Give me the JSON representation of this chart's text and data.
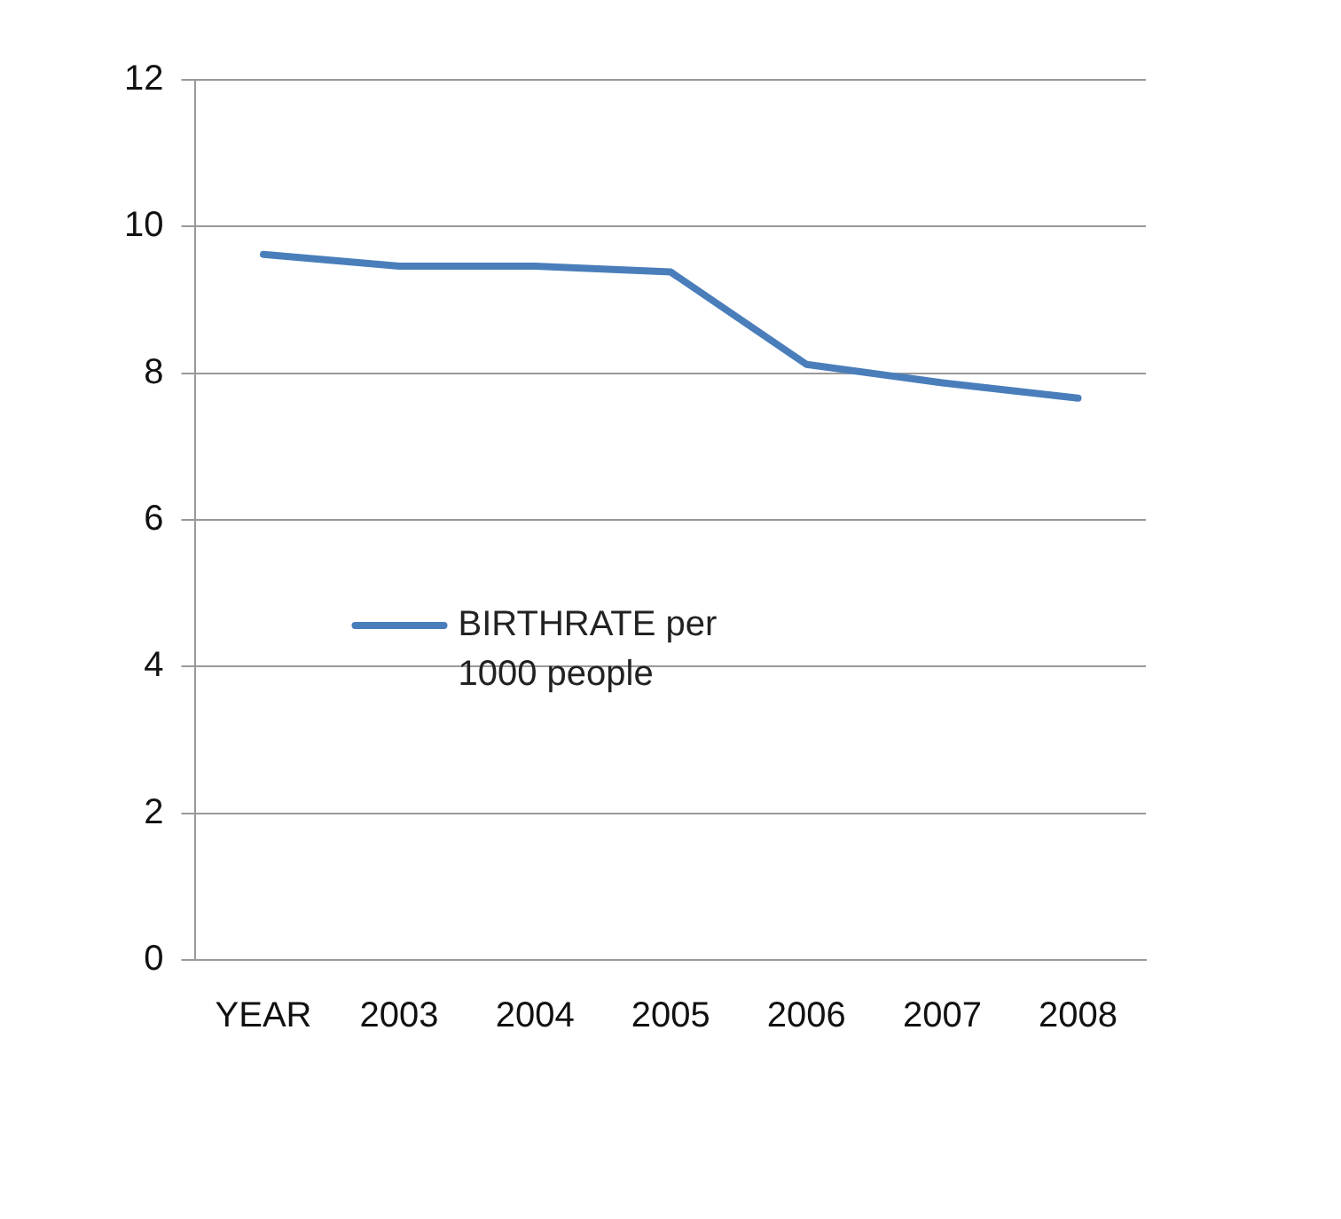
{
  "chart_data": {
    "type": "line",
    "categories": [
      "YEAR",
      "2003",
      "2004",
      "2005",
      "2006",
      "2007",
      "2008"
    ],
    "series": [
      {
        "name": "BIRTHRATE per 1000 people",
        "color": "#4a7ebb",
        "values": [
          9.62,
          9.46,
          9.46,
          9.38,
          8.12,
          7.87,
          7.66
        ]
      }
    ],
    "ylim": [
      0,
      12
    ],
    "yticks": [
      0,
      2,
      4,
      6,
      8,
      10,
      12
    ],
    "grid": "y",
    "legend": "center",
    "marker": "none",
    "line_style": "solid"
  }
}
